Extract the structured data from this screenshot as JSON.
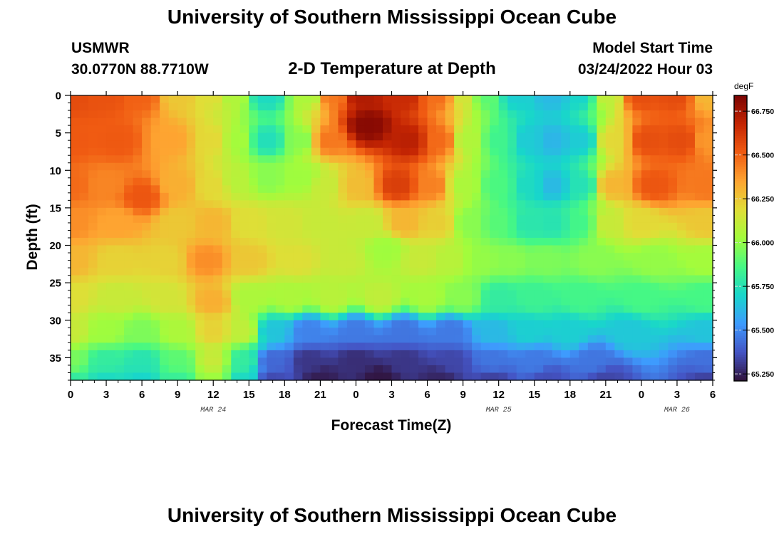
{
  "header": {
    "title": "University of Southern Mississippi Ocean Cube",
    "station": "USMWR",
    "coords": "30.0770N  88.7710W",
    "subtitle": "2-D Temperature at Depth",
    "model_label": "Model Start Time",
    "model_time": "03/24/2022 Hour 03"
  },
  "footer": {
    "title": "University of Southern Mississippi Ocean Cube"
  },
  "chart_data": {
    "type": "heatmap",
    "xlabel": "Forecast Time(Z)",
    "ylabel": "Depth (ft)",
    "x_tick_labels": [
      "0",
      "3",
      "6",
      "9",
      "12",
      "15",
      "18",
      "21",
      "0",
      "3",
      "6",
      "9",
      "12",
      "15",
      "18",
      "21",
      "0",
      "3",
      "6"
    ],
    "x_range_hours": [
      0,
      54
    ],
    "date_labels": [
      {
        "label": "MAR 24",
        "at_hour": 12
      },
      {
        "label": "MAR 25",
        "at_hour": 36
      },
      {
        "label": "MAR 26",
        "at_hour": 51
      }
    ],
    "y_ticks": [
      0,
      5,
      10,
      15,
      20,
      25,
      30,
      35
    ],
    "y_range": [
      0,
      38
    ],
    "y_inverted": true,
    "colorbar": {
      "unit": "degF",
      "ticks": [
        "66.750",
        "66.500",
        "66.250",
        "66.000",
        "65.750",
        "65.500",
        "65.250"
      ],
      "min": 65.21,
      "max": 66.84,
      "colors": [
        "#30123b",
        "#4454c4",
        "#3e9bfe",
        "#18d6cb",
        "#46f884",
        "#a2fc3c",
        "#e1dd37",
        "#fea431",
        "#f05b12",
        "#c42503",
        "#7a0403"
      ]
    },
    "features": [
      {
        "t": 0,
        "d": 0,
        "v": 66.56
      },
      {
        "t": 3,
        "d": 0,
        "v": 66.54
      },
      {
        "t": 6,
        "d": 0,
        "v": 66.5
      },
      {
        "t": 9,
        "d": 0,
        "v": 66.25
      },
      {
        "t": 12,
        "d": 0,
        "v": 66.18
      },
      {
        "t": 13.5,
        "d": 0,
        "v": 66.06
      },
      {
        "t": 16.5,
        "d": 0,
        "v": 65.72
      },
      {
        "t": 20,
        "d": 0,
        "v": 66.05
      },
      {
        "t": 22,
        "d": 0,
        "v": 66.45
      },
      {
        "t": 24.5,
        "d": 0,
        "v": 66.72
      },
      {
        "t": 28,
        "d": 0,
        "v": 66.66
      },
      {
        "t": 31,
        "d": 0,
        "v": 66.47
      },
      {
        "t": 33,
        "d": 0,
        "v": 66.15
      },
      {
        "t": 35,
        "d": 0,
        "v": 65.9
      },
      {
        "t": 37.5,
        "d": 0,
        "v": 65.68
      },
      {
        "t": 40.5,
        "d": 0,
        "v": 65.62
      },
      {
        "t": 43,
        "d": 0,
        "v": 65.7
      },
      {
        "t": 45,
        "d": 0,
        "v": 66.1
      },
      {
        "t": 48,
        "d": 0,
        "v": 66.55
      },
      {
        "t": 51,
        "d": 0,
        "v": 66.56
      },
      {
        "t": 53.5,
        "d": 0,
        "v": 66.3
      },
      {
        "t": 0,
        "d": 6,
        "v": 66.52
      },
      {
        "t": 4,
        "d": 6,
        "v": 66.52
      },
      {
        "t": 8.5,
        "d": 6,
        "v": 66.35
      },
      {
        "t": 12,
        "d": 6,
        "v": 66.2
      },
      {
        "t": 14,
        "d": 6,
        "v": 66.03
      },
      {
        "t": 16.5,
        "d": 6,
        "v": 65.74
      },
      {
        "t": 19.5,
        "d": 6,
        "v": 65.98
      },
      {
        "t": 21.5,
        "d": 6,
        "v": 66.45
      },
      {
        "t": 25,
        "d": 4,
        "v": 66.81
      },
      {
        "t": 28.5,
        "d": 6,
        "v": 66.7
      },
      {
        "t": 31,
        "d": 6,
        "v": 66.48
      },
      {
        "t": 33.5,
        "d": 6,
        "v": 66.06
      },
      {
        "t": 36,
        "d": 6,
        "v": 65.84
      },
      {
        "t": 38.5,
        "d": 6,
        "v": 65.67
      },
      {
        "t": 40.5,
        "d": 6,
        "v": 65.61
      },
      {
        "t": 43,
        "d": 6,
        "v": 65.67
      },
      {
        "t": 45.5,
        "d": 6,
        "v": 66.2
      },
      {
        "t": 48.5,
        "d": 6,
        "v": 66.55
      },
      {
        "t": 51.5,
        "d": 6,
        "v": 66.56
      },
      {
        "t": 53.5,
        "d": 6,
        "v": 66.38
      },
      {
        "t": 0,
        "d": 12,
        "v": 66.48
      },
      {
        "t": 3,
        "d": 12,
        "v": 66.42
      },
      {
        "t": 6,
        "d": 13.5,
        "v": 66.53
      },
      {
        "t": 9,
        "d": 12,
        "v": 66.32
      },
      {
        "t": 12,
        "d": 12,
        "v": 66.2
      },
      {
        "t": 14,
        "d": 11.5,
        "v": 66.08
      },
      {
        "t": 16.5,
        "d": 11,
        "v": 65.98
      },
      {
        "t": 19.5,
        "d": 11,
        "v": 66.02
      },
      {
        "t": 21.5,
        "d": 12,
        "v": 66.12
      },
      {
        "t": 24,
        "d": 12,
        "v": 66.28
      },
      {
        "t": 27.5,
        "d": 12,
        "v": 66.6
      },
      {
        "t": 30.5,
        "d": 12,
        "v": 66.43
      },
      {
        "t": 33,
        "d": 12,
        "v": 66.05
      },
      {
        "t": 36,
        "d": 12,
        "v": 65.87
      },
      {
        "t": 38.5,
        "d": 12,
        "v": 65.72
      },
      {
        "t": 40.5,
        "d": 12,
        "v": 65.62
      },
      {
        "t": 43,
        "d": 12,
        "v": 65.75
      },
      {
        "t": 45.5,
        "d": 12,
        "v": 66.3
      },
      {
        "t": 49,
        "d": 12,
        "v": 66.53
      },
      {
        "t": 53.5,
        "d": 12,
        "v": 66.45
      },
      {
        "t": 0,
        "d": 17,
        "v": 66.4
      },
      {
        "t": 4,
        "d": 17,
        "v": 66.35
      },
      {
        "t": 9,
        "d": 17,
        "v": 66.25
      },
      {
        "t": 12,
        "d": 17,
        "v": 66.3
      },
      {
        "t": 15,
        "d": 17,
        "v": 66.18
      },
      {
        "t": 18,
        "d": 17,
        "v": 66.15
      },
      {
        "t": 21,
        "d": 17,
        "v": 66.12
      },
      {
        "t": 25,
        "d": 17,
        "v": 66.12
      },
      {
        "t": 28,
        "d": 17,
        "v": 66.3
      },
      {
        "t": 31,
        "d": 17,
        "v": 66.23
      },
      {
        "t": 33.5,
        "d": 17,
        "v": 65.98
      },
      {
        "t": 36,
        "d": 17,
        "v": 65.89
      },
      {
        "t": 38.5,
        "d": 17,
        "v": 65.77
      },
      {
        "t": 40.5,
        "d": 17,
        "v": 65.76
      },
      {
        "t": 43,
        "d": 17,
        "v": 65.85
      },
      {
        "t": 45,
        "d": 17,
        "v": 66.12
      },
      {
        "t": 48,
        "d": 17,
        "v": 66.2
      },
      {
        "t": 53.5,
        "d": 17,
        "v": 66.25
      },
      {
        "t": 0,
        "d": 22,
        "v": 66.3
      },
      {
        "t": 4,
        "d": 22,
        "v": 66.22
      },
      {
        "t": 8,
        "d": 22,
        "v": 66.22
      },
      {
        "t": 11.5,
        "d": 22,
        "v": 66.4
      },
      {
        "t": 15,
        "d": 22,
        "v": 66.25
      },
      {
        "t": 19,
        "d": 22,
        "v": 66.18
      },
      {
        "t": 23,
        "d": 22,
        "v": 66.12
      },
      {
        "t": 26.5,
        "d": 20.5,
        "v": 66.02
      },
      {
        "t": 29.5,
        "d": 22,
        "v": 66.12
      },
      {
        "t": 32,
        "d": 22,
        "v": 66.08
      },
      {
        "t": 34.5,
        "d": 22,
        "v": 66.0
      },
      {
        "t": 37,
        "d": 22,
        "v": 65.98
      },
      {
        "t": 40,
        "d": 22,
        "v": 65.96
      },
      {
        "t": 44,
        "d": 22,
        "v": 65.98
      },
      {
        "t": 49,
        "d": 22,
        "v": 66.0
      },
      {
        "t": 53.5,
        "d": 22,
        "v": 66.03
      },
      {
        "t": 0,
        "d": 27,
        "v": 66.18
      },
      {
        "t": 4,
        "d": 27,
        "v": 66.12
      },
      {
        "t": 8,
        "d": 27,
        "v": 66.15
      },
      {
        "t": 12,
        "d": 27.5,
        "v": 66.32
      },
      {
        "t": 15,
        "d": 27,
        "v": 66.05
      },
      {
        "t": 18.5,
        "d": 27,
        "v": 66.05
      },
      {
        "t": 22,
        "d": 27,
        "v": 66.08
      },
      {
        "t": 26,
        "d": 27,
        "v": 66.1
      },
      {
        "t": 30,
        "d": 27,
        "v": 66.04
      },
      {
        "t": 33,
        "d": 27,
        "v": 65.98
      },
      {
        "t": 36,
        "d": 27,
        "v": 65.8
      },
      {
        "t": 39,
        "d": 27,
        "v": 65.83
      },
      {
        "t": 43,
        "d": 27,
        "v": 65.85
      },
      {
        "t": 48,
        "d": 27,
        "v": 65.86
      },
      {
        "t": 53.5,
        "d": 27,
        "v": 65.86
      },
      {
        "t": 0,
        "d": 31.5,
        "v": 66.12
      },
      {
        "t": 3,
        "d": 31.5,
        "v": 66.02
      },
      {
        "t": 6,
        "d": 31.5,
        "v": 65.96
      },
      {
        "t": 9,
        "d": 31.5,
        "v": 66.05
      },
      {
        "t": 12,
        "d": 31.5,
        "v": 66.22
      },
      {
        "t": 14.5,
        "d": 31.5,
        "v": 66.1
      },
      {
        "t": 17,
        "d": 31.5,
        "v": 65.65
      },
      {
        "t": 20,
        "d": 31.5,
        "v": 65.48
      },
      {
        "t": 24,
        "d": 31.5,
        "v": 65.46
      },
      {
        "t": 28,
        "d": 31.5,
        "v": 65.45
      },
      {
        "t": 32,
        "d": 31.5,
        "v": 65.46
      },
      {
        "t": 35.5,
        "d": 31.5,
        "v": 65.62
      },
      {
        "t": 38.5,
        "d": 31.5,
        "v": 65.68
      },
      {
        "t": 42,
        "d": 31.5,
        "v": 65.68
      },
      {
        "t": 47,
        "d": 31.5,
        "v": 65.66
      },
      {
        "t": 53.5,
        "d": 31.5,
        "v": 65.65
      },
      {
        "t": 0,
        "d": 35.5,
        "v": 65.95
      },
      {
        "t": 3,
        "d": 35.5,
        "v": 65.8
      },
      {
        "t": 6,
        "d": 35.5,
        "v": 65.76
      },
      {
        "t": 9,
        "d": 35.5,
        "v": 65.9
      },
      {
        "t": 12,
        "d": 35.5,
        "v": 66.12
      },
      {
        "t": 14.5,
        "d": 35.5,
        "v": 65.8
      },
      {
        "t": 17,
        "d": 35.5,
        "v": 65.42
      },
      {
        "t": 20,
        "d": 35.5,
        "v": 65.3
      },
      {
        "t": 24,
        "d": 35.5,
        "v": 65.28
      },
      {
        "t": 28,
        "d": 35.5,
        "v": 65.3
      },
      {
        "t": 32,
        "d": 35.5,
        "v": 65.34
      },
      {
        "t": 35.5,
        "d": 35.5,
        "v": 65.45
      },
      {
        "t": 39,
        "d": 35.5,
        "v": 65.46
      },
      {
        "t": 44,
        "d": 35.5,
        "v": 65.45
      },
      {
        "t": 53.5,
        "d": 35.5,
        "v": 65.44
      },
      {
        "t": 0,
        "d": 38,
        "v": 65.8
      },
      {
        "t": 3,
        "d": 38,
        "v": 65.72
      },
      {
        "t": 6,
        "d": 38,
        "v": 65.7
      },
      {
        "t": 9,
        "d": 38,
        "v": 65.82
      },
      {
        "t": 12,
        "d": 38,
        "v": 66.02
      },
      {
        "t": 14.5,
        "d": 38,
        "v": 65.72
      },
      {
        "t": 17,
        "d": 38,
        "v": 65.35
      },
      {
        "t": 21,
        "d": 38,
        "v": 65.24
      },
      {
        "t": 26,
        "d": 38,
        "v": 65.22
      },
      {
        "t": 31,
        "d": 38,
        "v": 65.26
      },
      {
        "t": 35.5,
        "d": 38,
        "v": 65.33
      },
      {
        "t": 40,
        "d": 38,
        "v": 65.36
      },
      {
        "t": 45,
        "d": 38,
        "v": 65.34
      },
      {
        "t": 53.5,
        "d": 38,
        "v": 65.33
      }
    ]
  }
}
